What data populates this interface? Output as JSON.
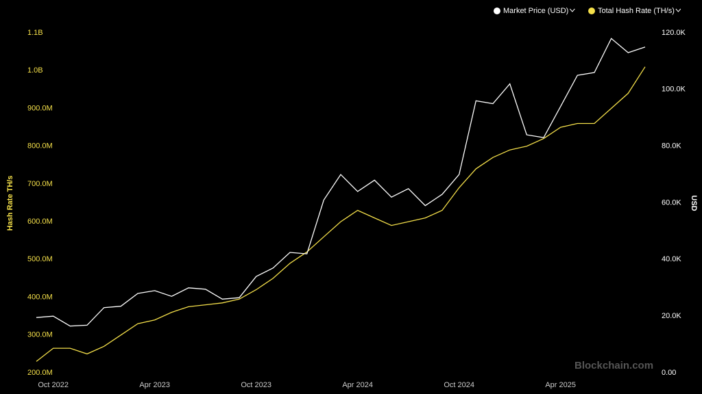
{
  "chart_data": {
    "type": "line",
    "y_label": "Hash Rate TH/s",
    "y2_label": "USD",
    "watermark": "Blockchain.com",
    "x": [
      "2022-09",
      "2022-10",
      "2022-11",
      "2022-12",
      "2023-01",
      "2023-02",
      "2023-03",
      "2023-04",
      "2023-05",
      "2023-06",
      "2023-07",
      "2023-08",
      "2023-09",
      "2023-10",
      "2023-11",
      "2023-12",
      "2024-01",
      "2024-02",
      "2024-03",
      "2024-04",
      "2024-05",
      "2024-06",
      "2024-07",
      "2024-08",
      "2024-09",
      "2024-10",
      "2024-11",
      "2024-12",
      "2025-01",
      "2025-02",
      "2025-03",
      "2025-04",
      "2025-05",
      "2025-06",
      "2025-07",
      "2025-08",
      "2025-09"
    ],
    "xticks": [
      {
        "value": "2022-10",
        "label": "Oct 2022"
      },
      {
        "value": "2023-04",
        "label": "Apr 2023"
      },
      {
        "value": "2023-10",
        "label": "Oct 2023"
      },
      {
        "value": "2024-04",
        "label": "Apr 2024"
      },
      {
        "value": "2024-10",
        "label": "Oct 2024"
      },
      {
        "value": "2025-04",
        "label": "Apr 2025"
      }
    ],
    "ylim": [
      200000000,
      1100000000
    ],
    "yticks": [
      {
        "value": 200000000,
        "label": "200.0M"
      },
      {
        "value": 300000000,
        "label": "300.0M"
      },
      {
        "value": 400000000,
        "label": "400.0M"
      },
      {
        "value": 500000000,
        "label": "500.0M"
      },
      {
        "value": 600000000,
        "label": "600.0M"
      },
      {
        "value": 700000000,
        "label": "700.0M"
      },
      {
        "value": 800000000,
        "label": "800.0M"
      },
      {
        "value": 900000000,
        "label": "900.0M"
      },
      {
        "value": 1000000000,
        "label": "1.0B"
      },
      {
        "value": 1100000000,
        "label": "1.1B"
      }
    ],
    "y2lim": [
      0,
      120000
    ],
    "y2ticks": [
      {
        "value": 0,
        "label": "0.00"
      },
      {
        "value": 20000,
        "label": "20.0K"
      },
      {
        "value": 40000,
        "label": "40.0K"
      },
      {
        "value": 60000,
        "label": "60.0K"
      },
      {
        "value": 80000,
        "label": "80.0K"
      },
      {
        "value": 100000,
        "label": "100.0K"
      },
      {
        "value": 120000,
        "label": "120.0K"
      }
    ],
    "series": [
      {
        "name": "Market Price (USD)",
        "color": "#ffffff",
        "axis": "y2",
        "values": [
          19500,
          20000,
          16500,
          16800,
          23000,
          23500,
          28000,
          29000,
          27000,
          30000,
          29500,
          26000,
          26500,
          34000,
          37000,
          42500,
          42000,
          61000,
          70000,
          64000,
          68000,
          62000,
          65000,
          59000,
          63000,
          70000,
          96000,
          95000,
          102000,
          84000,
          83000,
          94000,
          105000,
          106000,
          118000,
          113000,
          115000
        ]
      },
      {
        "name": "Total Hash Rate (TH/s)",
        "color": "#f5e04a",
        "values": [
          230000000,
          265000000,
          265000000,
          250000000,
          270000000,
          300000000,
          330000000,
          340000000,
          360000000,
          375000000,
          380000000,
          385000000,
          395000000,
          420000000,
          450000000,
          490000000,
          520000000,
          560000000,
          600000000,
          630000000,
          610000000,
          590000000,
          600000000,
          610000000,
          630000000,
          690000000,
          740000000,
          770000000,
          790000000,
          800000000,
          820000000,
          850000000,
          860000000,
          860000000,
          900000000,
          940000000,
          1010000000
        ]
      }
    ]
  }
}
